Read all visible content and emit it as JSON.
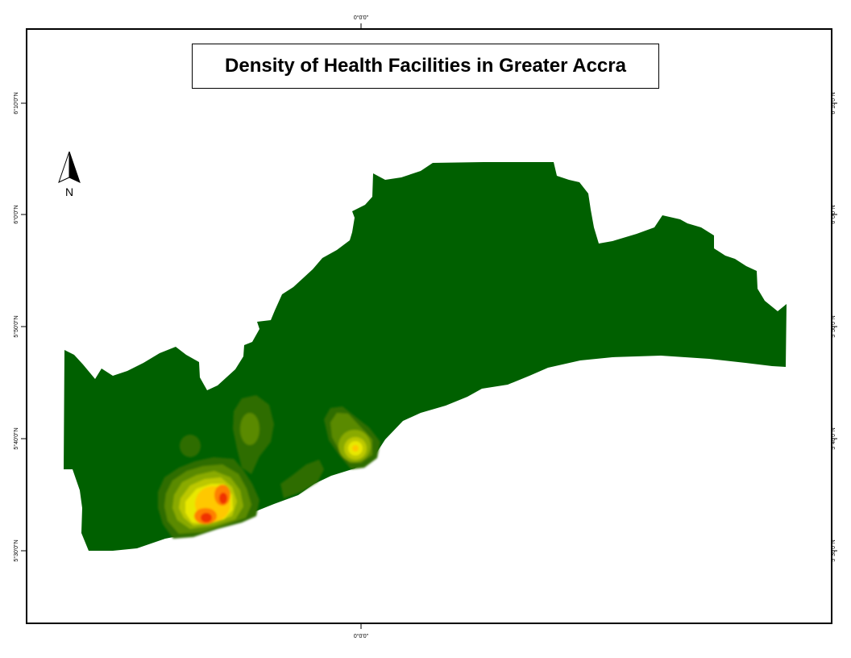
{
  "title": "Density of Health Facilities in Greater Accra",
  "north_arrow": {
    "icon": "north-arrow-icon",
    "label": "N"
  },
  "graticule": {
    "top_longitude": "0°0'0\"",
    "bottom_longitude": "0°0'0\"",
    "left_latitudes": [
      "6°10'0\"N",
      "6°0'0\"N",
      "5°50'0\"N",
      "5°40'0\"N",
      "5°30'0\"N"
    ],
    "right_latitudes": [
      "6°10'0\"N",
      "6°0'0\"N",
      "5°50'0\"N",
      "5°40'0\"N",
      "5°30'0\"N"
    ]
  },
  "colors": {
    "region_fill": "#006000",
    "density_ramp": [
      "#2f6d00",
      "#5a8a00",
      "#8aaa00",
      "#bcc800",
      "#e8e800",
      "#ffc800",
      "#ff8000",
      "#f03000"
    ],
    "frame": "#000000"
  }
}
